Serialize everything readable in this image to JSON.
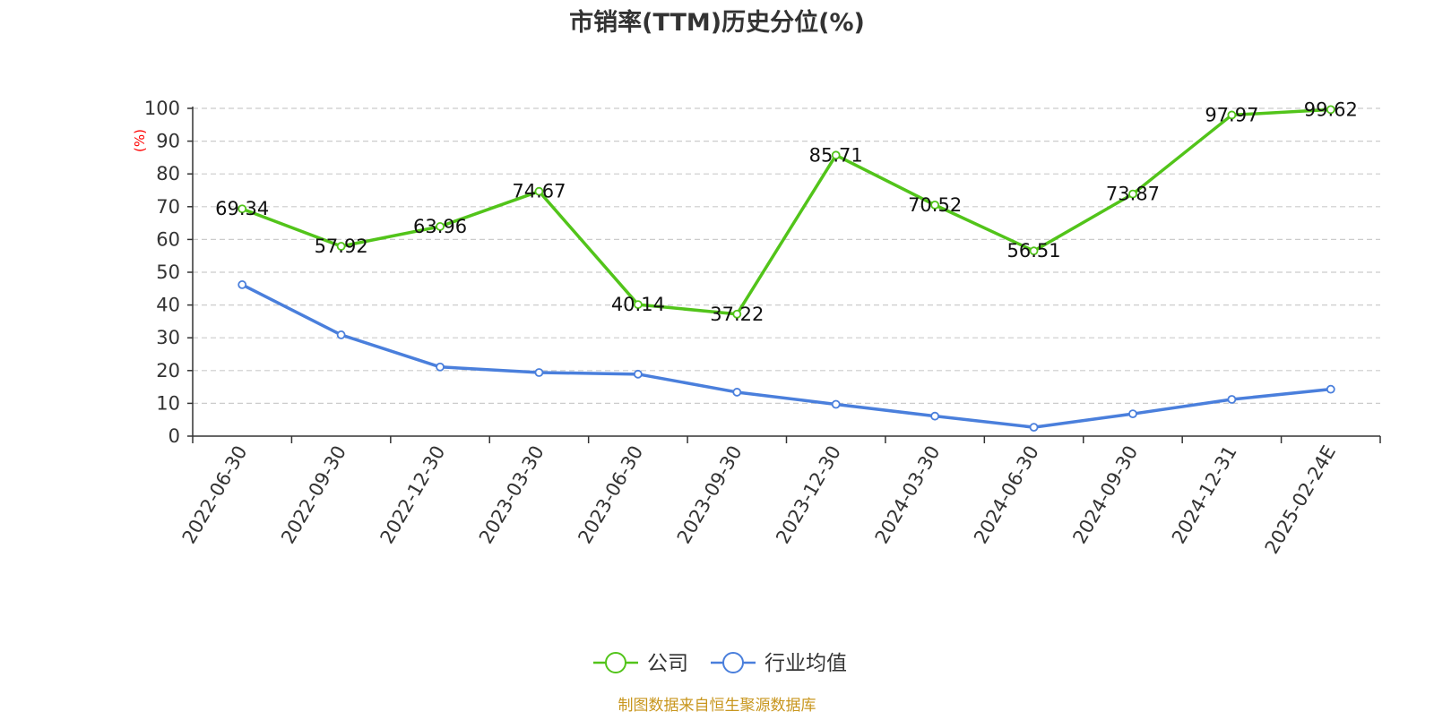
{
  "source_note": "制图数据来自恒生聚源数据库",
  "colors": {
    "company": "#52c41a",
    "industry": "#4a7fdc",
    "title": "#333333",
    "axis": "#333333",
    "grid": "#cccccc",
    "ylabel": "#ff0000",
    "source": "#c8961e"
  },
  "chart_data": {
    "type": "line",
    "title": "市销率(TTM)历史分位(%)",
    "xlabel": "",
    "ylabel": "(%)",
    "ylim": [
      0,
      100
    ],
    "yticks": [
      0,
      10,
      20,
      30,
      40,
      50,
      60,
      70,
      80,
      90,
      100
    ],
    "grid": true,
    "legend_position": "bottom-center",
    "categories": [
      "2022-06-30",
      "2022-09-30",
      "2022-12-30",
      "2023-03-30",
      "2023-06-30",
      "2023-09-30",
      "2023-12-30",
      "2024-03-30",
      "2024-06-30",
      "2024-09-30",
      "2024-12-31",
      "2025-02-24E"
    ],
    "series": [
      {
        "name": "公司",
        "values": [
          69.34,
          57.92,
          63.96,
          74.67,
          40.14,
          37.22,
          85.71,
          70.52,
          56.51,
          73.87,
          97.97,
          99.62
        ],
        "data_labels": [
          "69.34",
          "57.92",
          "63.96",
          "74.67",
          "40.14",
          "37.22",
          "85.71",
          "70.52",
          "56.51",
          "73.87",
          "97.97",
          "99.62"
        ]
      },
      {
        "name": "行业均值",
        "values": [
          46.2,
          30.9,
          21.1,
          19.4,
          18.9,
          13.4,
          9.7,
          6.1,
          2.7,
          6.8,
          11.2,
          14.3
        ],
        "data_labels": []
      }
    ]
  }
}
